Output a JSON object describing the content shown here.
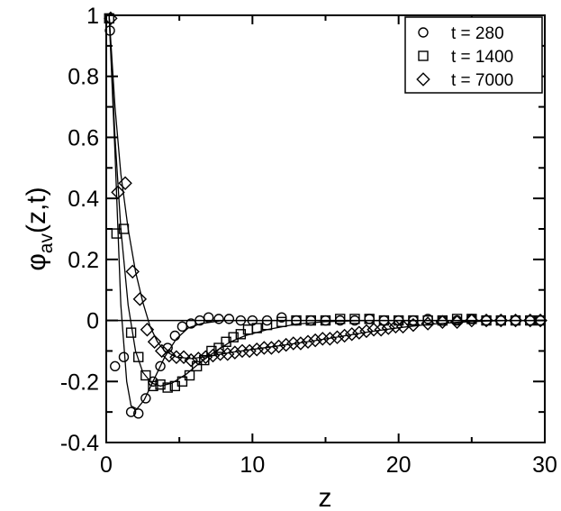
{
  "chart_data": {
    "type": "scatter",
    "xlabel": "z",
    "ylabel": "φav(z,t)",
    "ylabel_parts": {
      "symbol": "φ",
      "sub": "av",
      "args": "(z,t)"
    },
    "xlim": [
      0,
      30
    ],
    "ylim": [
      -0.4,
      1
    ],
    "x_ticks": [
      0,
      10,
      20,
      30
    ],
    "y_ticks": [
      -0.4,
      -0.2,
      0,
      0.2,
      0.4,
      0.6,
      0.8,
      1
    ],
    "x_tick_labels": [
      "0",
      "10",
      "20",
      "30"
    ],
    "y_tick_labels": [
      "-0.4",
      "-0.2",
      "0",
      "0.2",
      "0.4",
      "0.6",
      "0.8",
      "1"
    ],
    "zero_line": true,
    "grid": false,
    "legend_position": "top-right",
    "series": [
      {
        "name": "t = 280",
        "marker": "circle",
        "points": [
          [
            0.25,
            0.95
          ],
          [
            0.6,
            -0.15
          ],
          [
            1.2,
            -0.12
          ],
          [
            1.7,
            -0.3
          ],
          [
            2.2,
            -0.305
          ],
          [
            2.7,
            -0.255
          ],
          [
            3.2,
            -0.2
          ],
          [
            3.7,
            -0.15
          ],
          [
            4.2,
            -0.09
          ],
          [
            4.7,
            -0.05
          ],
          [
            5.2,
            -0.02
          ],
          [
            5.8,
            -0.01
          ],
          [
            6.4,
            0.0
          ],
          [
            7.0,
            0.01
          ],
          [
            7.7,
            0.005
          ],
          [
            8.4,
            0.005
          ],
          [
            9.2,
            0.0
          ],
          [
            10.0,
            0.0
          ],
          [
            11.0,
            0.0
          ],
          [
            12.0,
            0.01
          ],
          [
            13.0,
            0.0
          ],
          [
            14.0,
            0.0
          ],
          [
            15.0,
            0.0
          ],
          [
            16.0,
            0.0
          ],
          [
            17.0,
            0.0
          ],
          [
            18.0,
            0.005
          ],
          [
            19.0,
            0.0
          ],
          [
            20.0,
            0.0
          ],
          [
            21.0,
            0.0
          ],
          [
            22.0,
            0.005
          ],
          [
            23.0,
            0.0
          ],
          [
            24.0,
            0.0
          ],
          [
            25.0,
            0.005
          ],
          [
            26.0,
            0.0
          ],
          [
            27.0,
            0.0
          ],
          [
            28.0,
            0.0
          ],
          [
            29.0,
            0.0
          ],
          [
            29.7,
            0.0
          ]
        ],
        "fit": [
          [
            0.2,
            1.0
          ],
          [
            0.6,
            0.55
          ],
          [
            1.0,
            0.05
          ],
          [
            1.4,
            -0.2
          ],
          [
            1.7,
            -0.28
          ],
          [
            2.1,
            -0.29
          ],
          [
            2.6,
            -0.26
          ],
          [
            3.2,
            -0.2
          ],
          [
            4.0,
            -0.12
          ],
          [
            4.8,
            -0.06
          ],
          [
            5.6,
            -0.025
          ],
          [
            6.5,
            -0.01
          ],
          [
            8.0,
            0.0
          ],
          [
            30.0,
            0.0
          ]
        ]
      },
      {
        "name": "t = 1400",
        "marker": "square",
        "points": [
          [
            0.2,
            0.99
          ],
          [
            0.7,
            0.285
          ],
          [
            1.2,
            0.3
          ],
          [
            1.7,
            -0.04
          ],
          [
            2.2,
            -0.12
          ],
          [
            2.7,
            -0.18
          ],
          [
            3.2,
            -0.215
          ],
          [
            3.7,
            -0.21
          ],
          [
            4.2,
            -0.22
          ],
          [
            4.7,
            -0.215
          ],
          [
            5.2,
            -0.2
          ],
          [
            5.7,
            -0.18
          ],
          [
            6.2,
            -0.15
          ],
          [
            6.7,
            -0.13
          ],
          [
            7.2,
            -0.1
          ],
          [
            7.7,
            -0.09
          ],
          [
            8.2,
            -0.07
          ],
          [
            8.7,
            -0.055
          ],
          [
            9.2,
            -0.045
          ],
          [
            9.7,
            -0.03
          ],
          [
            10.3,
            -0.025
          ],
          [
            11.0,
            -0.015
          ],
          [
            12.0,
            -0.005
          ],
          [
            13.0,
            0.0
          ],
          [
            14.0,
            0.0
          ],
          [
            15.0,
            0.0
          ],
          [
            16.0,
            0.005
          ],
          [
            17.0,
            0.005
          ],
          [
            18.0,
            0.005
          ],
          [
            19.0,
            0.0
          ],
          [
            20.0,
            0.0
          ],
          [
            21.0,
            0.0
          ],
          [
            22.0,
            0.0
          ],
          [
            23.0,
            0.0
          ],
          [
            24.0,
            0.005
          ],
          [
            25.0,
            0.005
          ],
          [
            26.0,
            0.0
          ],
          [
            27.0,
            0.0
          ],
          [
            28.0,
            0.0
          ],
          [
            29.0,
            0.0
          ],
          [
            29.7,
            0.0
          ]
        ],
        "fit": [
          [
            0.2,
            1.0
          ],
          [
            0.6,
            0.6
          ],
          [
            1.0,
            0.3
          ],
          [
            1.5,
            0.05
          ],
          [
            2.0,
            -0.1
          ],
          [
            2.5,
            -0.17
          ],
          [
            3.1,
            -0.205
          ],
          [
            3.7,
            -0.215
          ],
          [
            4.5,
            -0.205
          ],
          [
            5.5,
            -0.175
          ],
          [
            6.5,
            -0.135
          ],
          [
            7.5,
            -0.1
          ],
          [
            8.5,
            -0.07
          ],
          [
            9.5,
            -0.05
          ],
          [
            11.0,
            -0.03
          ],
          [
            13.0,
            -0.012
          ],
          [
            15.0,
            -0.004
          ],
          [
            18.0,
            0.0
          ],
          [
            30.0,
            0.0
          ]
        ]
      },
      {
        "name": "t = 7000",
        "marker": "diamond",
        "points": [
          [
            0.3,
            0.99
          ],
          [
            0.8,
            0.42
          ],
          [
            1.3,
            0.45
          ],
          [
            1.8,
            0.16
          ],
          [
            2.3,
            0.07
          ],
          [
            2.8,
            -0.03
          ],
          [
            3.3,
            -0.07
          ],
          [
            3.8,
            -0.1
          ],
          [
            4.3,
            -0.115
          ],
          [
            4.8,
            -0.12
          ],
          [
            5.3,
            -0.12
          ],
          [
            5.8,
            -0.13
          ],
          [
            6.3,
            -0.125
          ],
          [
            6.8,
            -0.12
          ],
          [
            7.3,
            -0.115
          ],
          [
            7.8,
            -0.11
          ],
          [
            8.3,
            -0.11
          ],
          [
            8.8,
            -0.105
          ],
          [
            9.3,
            -0.1
          ],
          [
            9.8,
            -0.1
          ],
          [
            10.3,
            -0.095
          ],
          [
            10.8,
            -0.09
          ],
          [
            11.3,
            -0.09
          ],
          [
            11.8,
            -0.085
          ],
          [
            12.3,
            -0.08
          ],
          [
            12.8,
            -0.075
          ],
          [
            13.3,
            -0.075
          ],
          [
            13.8,
            -0.07
          ],
          [
            14.3,
            -0.065
          ],
          [
            14.8,
            -0.06
          ],
          [
            15.3,
            -0.06
          ],
          [
            15.8,
            -0.055
          ],
          [
            16.3,
            -0.05
          ],
          [
            16.8,
            -0.045
          ],
          [
            17.3,
            -0.04
          ],
          [
            17.8,
            -0.035
          ],
          [
            18.3,
            -0.03
          ],
          [
            18.8,
            -0.03
          ],
          [
            19.3,
            -0.025
          ],
          [
            19.8,
            -0.02
          ],
          [
            20.3,
            -0.02
          ],
          [
            21.0,
            -0.015
          ],
          [
            22.0,
            -0.01
          ],
          [
            23.0,
            -0.005
          ],
          [
            24.0,
            -0.005
          ],
          [
            25.0,
            0.0
          ],
          [
            26.0,
            0.0
          ],
          [
            27.0,
            0.0
          ],
          [
            28.0,
            0.0
          ],
          [
            29.0,
            0.0
          ],
          [
            29.7,
            0.0
          ]
        ],
        "fit": [
          [
            0.2,
            1.0
          ],
          [
            0.6,
            0.7
          ],
          [
            1.0,
            0.48
          ],
          [
            1.5,
            0.3
          ],
          [
            2.0,
            0.16
          ],
          [
            2.5,
            0.06
          ],
          [
            3.0,
            -0.02
          ],
          [
            3.5,
            -0.07
          ],
          [
            4.0,
            -0.1
          ],
          [
            4.8,
            -0.12
          ],
          [
            5.8,
            -0.125
          ],
          [
            7.0,
            -0.118
          ],
          [
            8.5,
            -0.105
          ],
          [
            10.0,
            -0.095
          ],
          [
            12.0,
            -0.082
          ],
          [
            14.0,
            -0.068
          ],
          [
            16.0,
            -0.053
          ],
          [
            18.0,
            -0.037
          ],
          [
            20.0,
            -0.024
          ],
          [
            22.0,
            -0.013
          ],
          [
            24.0,
            -0.006
          ],
          [
            26.0,
            -0.002
          ],
          [
            28.0,
            0.0
          ],
          [
            30.0,
            0.0
          ]
        ]
      }
    ]
  }
}
